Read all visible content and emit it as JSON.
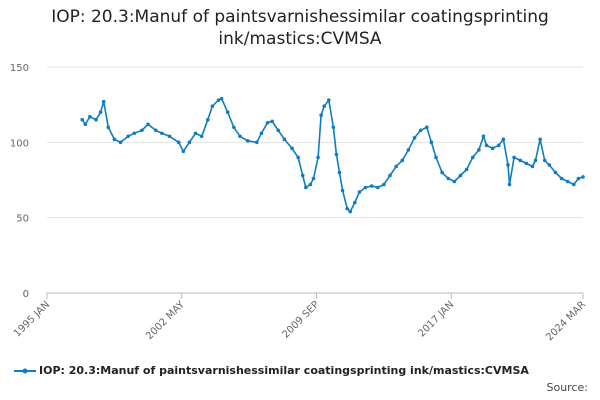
{
  "chart_data": {
    "type": "line",
    "title": "IOP: 20.3:Manuf of paintsvarnishessimilar coatingsprinting ink/mastics:CVMSA",
    "source": "Source:",
    "x": [
      "1996 DEC",
      "1997 FEB",
      "1997 MAY",
      "1997 SEP",
      "1997 DEC",
      "1998 FEB",
      "1998 MAY",
      "1998 SEP",
      "1999 JAN",
      "1999 JUN",
      "1999 OCT",
      "2000 MAR",
      "2000 JUL",
      "2000 DEC",
      "2001 APR",
      "2001 SEP",
      "2002 MAR",
      "2002 JUN",
      "2002 OCT",
      "2003 FEB",
      "2003 JUN",
      "2003 OCT",
      "2004 JAN",
      "2004 MAY",
      "2004 JUL",
      "2004 NOV",
      "2005 MAR",
      "2005 JUL",
      "2005 DEC",
      "2006 JUN",
      "2006 SEP",
      "2007 JAN",
      "2007 APR",
      "2007 AUG",
      "2007 DEC",
      "2008 MAY",
      "2008 SEP",
      "2008 DEC",
      "2009 FEB",
      "2009 MAY",
      "2009 JUL",
      "2009 OCT",
      "2009 DEC",
      "2010 FEB",
      "2010 MAY",
      "2010 AUG",
      "2010 OCT",
      "2010 DEC",
      "2011 FEB",
      "2011 MAY",
      "2011 JUL",
      "2011 OCT",
      "2012 JAN",
      "2012 MAY",
      "2012 SEP",
      "2013 JAN",
      "2013 MAY",
      "2013 SEP",
      "2014 JAN",
      "2014 MAY",
      "2014 SEP",
      "2015 JAN",
      "2015 MAY",
      "2015 SEP",
      "2015 DEC",
      "2016 MAR",
      "2016 JUL",
      "2016 NOV",
      "2017 MAR",
      "2017 JUL",
      "2017 NOV",
      "2018 MAR",
      "2018 JUL",
      "2018 OCT",
      "2018 DEC",
      "2019 APR",
      "2019 AUG",
      "2019 NOV",
      "2020 FEB",
      "2020 MAR",
      "2020 JUN",
      "2020 OCT",
      "2021 FEB",
      "2021 JUN",
      "2021 AUG",
      "2021 NOV",
      "2022 FEB",
      "2022 MAY",
      "2022 SEP",
      "2023 JAN",
      "2023 MAY",
      "2023 SEP",
      "2023 DEC",
      "2024 MAR"
    ],
    "series": [
      {
        "name": "IOP: 20.3:Manuf of paintsvarnishessimilar coatingsprinting ink/mastics:CVMSA",
        "color": "#0f7dbf",
        "values": [
          115,
          112,
          117,
          115,
          120,
          127,
          110,
          102,
          100,
          104,
          106,
          108,
          112,
          108,
          106,
          104,
          100,
          94,
          100,
          106,
          104,
          115,
          124,
          128,
          129,
          120,
          110,
          104,
          101,
          100,
          106,
          113,
          114,
          108,
          102,
          96,
          90,
          78,
          70,
          72,
          76,
          90,
          118,
          124,
          128,
          110,
          92,
          80,
          68,
          56,
          54,
          60,
          67,
          70,
          71,
          70,
          72,
          78,
          84,
          88,
          95,
          103,
          108,
          110,
          100,
          90,
          80,
          76,
          74,
          78,
          82,
          90,
          95,
          104,
          98,
          96,
          98,
          102,
          85,
          72,
          90,
          88,
          86,
          84,
          88,
          102,
          88,
          85,
          80,
          76,
          74,
          72,
          76,
          77
        ]
      }
    ],
    "xlim": [
      "1995 JAN",
      "2024 MAR"
    ],
    "xticks": [
      "1995 JAN",
      "2002 MAY",
      "2009 SEP",
      "2017 JAN",
      "2024 MAR"
    ],
    "ylim": [
      0,
      150
    ],
    "yticks": [
      0,
      50,
      100,
      150
    ],
    "grid": true
  }
}
